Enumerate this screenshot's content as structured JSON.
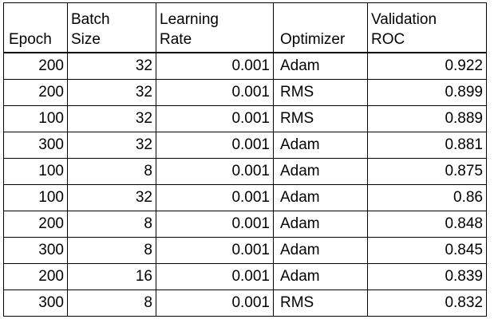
{
  "table": {
    "headers": [
      [
        "Epoch"
      ],
      [
        "Batch",
        "Size"
      ],
      [
        "Learning",
        "Rate"
      ],
      [
        "Optimizer"
      ],
      [
        "Validation",
        "ROC"
      ]
    ],
    "rows": [
      [
        "200",
        "32",
        "0.001",
        "Adam",
        "0.922"
      ],
      [
        "200",
        "32",
        "0.001",
        "RMS",
        "0.899"
      ],
      [
        "100",
        "32",
        "0.001",
        "RMS",
        "0.889"
      ],
      [
        "300",
        "32",
        "0.001",
        "Adam",
        "0.881"
      ],
      [
        "100",
        "8",
        "0.001",
        "Adam",
        "0.875"
      ],
      [
        "100",
        "32",
        "0.001",
        "Adam",
        "0.86"
      ],
      [
        "200",
        "8",
        "0.001",
        "Adam",
        "0.848"
      ],
      [
        "300",
        "8",
        "0.001",
        "Adam",
        "0.845"
      ],
      [
        "200",
        "16",
        "0.001",
        "Adam",
        "0.839"
      ],
      [
        "300",
        "8",
        "0.001",
        "RMS",
        "0.832"
      ]
    ]
  }
}
